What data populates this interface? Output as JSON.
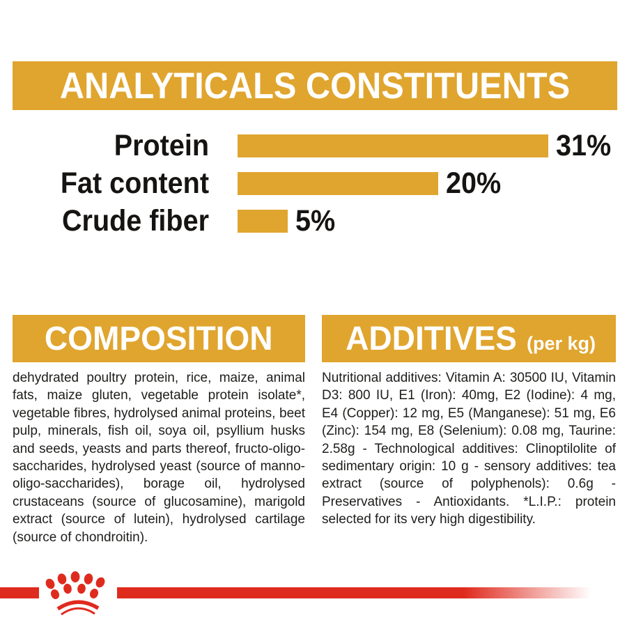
{
  "colors": {
    "gold": "#E0A52E",
    "red": "#DF2B1E",
    "text": "#1D1D1B"
  },
  "header": {
    "title": "ANALYTICALS CONSTITUENTS"
  },
  "chart_data": {
    "type": "bar",
    "orientation": "horizontal",
    "title": "ANALYTICALS CONSTITUENTS",
    "categories": [
      "Protein",
      "Fat content",
      "Crude fiber"
    ],
    "values": [
      31,
      20,
      5
    ],
    "unit": "%",
    "value_labels": [
      "31%",
      "20%",
      "5%"
    ],
    "xlim": [
      0,
      31
    ],
    "bar_color": "#E0A52E",
    "grid": false,
    "legend": false
  },
  "sections": {
    "composition": {
      "title": "COMPOSITION",
      "body": "dehydrated poultry protein, rice, maize, animal fats, maize gluten, vegetable protein isolate*, vegetable fibres, hydrolysed animal proteins, beet pulp, minerals, fish oil, soya oil, psyllium husks and seeds, yeasts and parts thereof, fructo-oligo-saccharides, hydrolysed yeast (source of manno-oligo-saccharides), borage oil, hydrolysed crustaceans (source of glucosamine), marigold extract (source of lutein), hydrolysed cartilage (source of chondroitin)."
    },
    "additives": {
      "title": "ADDITIVES",
      "title_suffix": "(per kg)",
      "body": "Nutritional additives: Vitamin A: 30500 IU, Vitamin D3: 800 IU, E1 (Iron): 40mg, E2 (Iodine): 4 mg, E4 (Copper): 12 mg, E5 (Manganese): 51 mg, E6 (Zinc): 154 mg, E8 (Selenium): 0.08 mg, Taurine: 2.58g - Technological additives: Clinoptilolite of sedimentary origin: 10 g - sensory additives: tea extract (source of polyphenols): 0.6g - Preservatives - Antioxidants. *L.I.P.: protein selected for its very high digestibility."
    }
  },
  "footer": {
    "brand_logo": "royal-canin-crown-logo"
  }
}
